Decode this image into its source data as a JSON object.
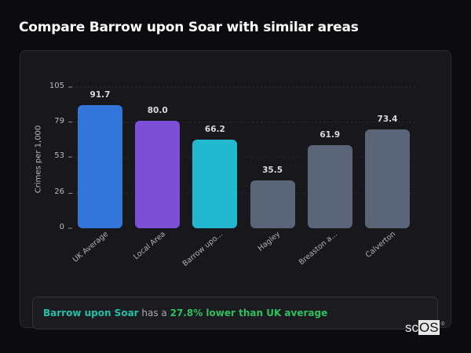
{
  "page": {
    "title": "Compare Barrow upon Soar with similar areas"
  },
  "chart_data": {
    "type": "bar",
    "title": "Compare Barrow upon Soar with similar areas",
    "xlabel": "",
    "ylabel": "Crimes per 1,000",
    "ylim": [
      0,
      105
    ],
    "yticks": [
      0,
      26,
      53,
      79,
      105
    ],
    "grid": true,
    "categories": [
      "UK Average",
      "Local Area",
      "Barrow upo...",
      "Hagley",
      "Breaston a...",
      "Calverton"
    ],
    "values": [
      91.7,
      80.0,
      66.2,
      35.5,
      61.9,
      73.4
    ],
    "value_labels": [
      "91.7",
      "80.0",
      "66.2",
      "35.5",
      "61.9",
      "73.4"
    ],
    "colors": [
      "#3375d9",
      "#7b4fd6",
      "#22b8d0",
      "#5a6578",
      "#5a6578",
      "#5a6578"
    ]
  },
  "summary": {
    "area_name": "Barrow upon Soar",
    "connector": " has a ",
    "comparison": "27.8% lower than UK average"
  },
  "watermark": {
    "text_plain": "sc",
    "text_boxed": "OS",
    "mark": "®"
  }
}
